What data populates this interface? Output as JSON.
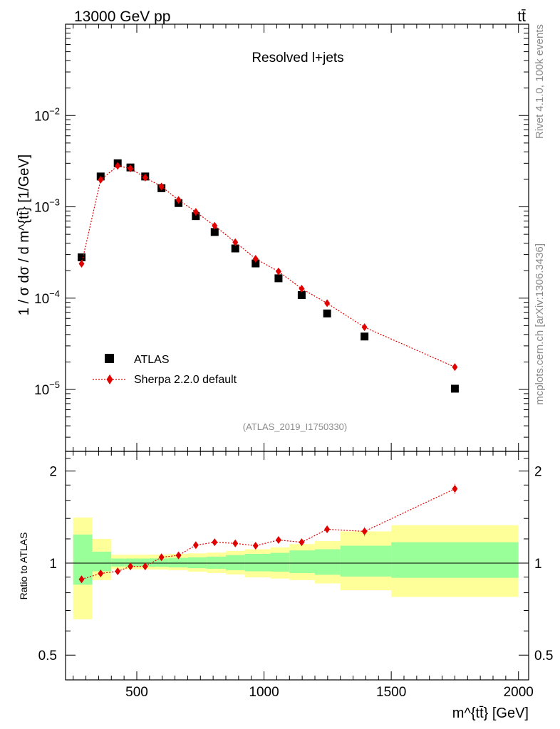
{
  "header": {
    "left_label": "13000 GeV pp",
    "right_label": "tt̄"
  },
  "side_labels": {
    "rivet": "Rivet 4.1.0,  100k events",
    "mcplots": "mcplots.cern.ch [arXiv:1306.3436]"
  },
  "chart_data": [
    {
      "type": "scatter",
      "title": "Resolved l+jets",
      "watermark": "(ATLAS_2019_I1750330)",
      "ylabel": "1 / σ dσ / d m^{tt̄} [1/GeV]",
      "yscale": "log",
      "xlim": [
        220,
        2040
      ],
      "ylim": [
        2.1e-06,
        0.1
      ],
      "y_ticks": [
        {
          "value": 1e-05,
          "base": "10",
          "exp": "−5"
        },
        {
          "value": 0.0001,
          "base": "10",
          "exp": "−4"
        },
        {
          "value": 0.001,
          "base": "10",
          "exp": "−3"
        },
        {
          "value": 0.01,
          "base": "10",
          "exp": "−2"
        }
      ],
      "legend": {
        "position": "bottom-left",
        "entries": [
          "ATLAS",
          "Sherpa 2.2.0 default"
        ]
      },
      "bins": [
        [
          250,
          325
        ],
        [
          325,
          400
        ],
        [
          400,
          450
        ],
        [
          450,
          500
        ],
        [
          500,
          550
        ],
        [
          550,
          625
        ],
        [
          625,
          700
        ],
        [
          700,
          775
        ],
        [
          775,
          850
        ],
        [
          850,
          925
        ],
        [
          925,
          1025
        ],
        [
          1025,
          1100
        ],
        [
          1100,
          1200
        ],
        [
          1200,
          1300
        ],
        [
          1300,
          1500
        ],
        [
          1500,
          2000
        ]
      ],
      "series": [
        {
          "name": "ATLAS",
          "marker": "square",
          "color": "#000000",
          "x": [
            283,
            358,
            425,
            475,
            533,
            597,
            664,
            732,
            806,
            887,
            967,
            1057,
            1148,
            1248,
            1395,
            1750
          ],
          "y": [
            0.00028,
            0.00215,
            0.003,
            0.0027,
            0.00215,
            0.0016,
            0.0011,
            0.00079,
            0.00053,
            0.00035,
            0.00024,
            0.000165,
            0.000108,
            6.8e-05,
            3.8e-05,
            1.02e-05
          ]
        },
        {
          "name": "Sherpa 2.2.0 default",
          "marker": "diamond",
          "color": "#e00000",
          "line": "dotted",
          "x": [
            283,
            358,
            425,
            475,
            533,
            597,
            664,
            732,
            806,
            887,
            967,
            1057,
            1148,
            1248,
            1395,
            1750
          ],
          "y": [
            0.000238,
            0.00198,
            0.00281,
            0.00263,
            0.00209,
            0.00167,
            0.00119,
            0.00088,
            0.00062,
            0.00041,
            0.00027,
            0.000196,
            0.000127,
            8.8e-05,
            4.8e-05,
            1.76e-05
          ]
        }
      ]
    },
    {
      "type": "scatter",
      "ylabel": "Ratio to ATLAS",
      "xlabel": "m^{tt̄} [GeV]",
      "xlim": [
        220,
        2040
      ],
      "ylim": [
        0.415,
        2.32
      ],
      "yscale": "log",
      "x_ticks": [
        500,
        1000,
        1500,
        2000
      ],
      "y_ticks": [
        {
          "value": 0.5,
          "label": "0.5"
        },
        {
          "value": 1,
          "label": "1"
        },
        {
          "value": 2,
          "label": "2"
        }
      ],
      "reference_line": 1,
      "bins": [
        [
          250,
          325
        ],
        [
          325,
          400
        ],
        [
          400,
          450
        ],
        [
          450,
          500
        ],
        [
          500,
          550
        ],
        [
          550,
          625
        ],
        [
          625,
          700
        ],
        [
          700,
          775
        ],
        [
          775,
          850
        ],
        [
          850,
          925
        ],
        [
          925,
          1025
        ],
        [
          1025,
          1100
        ],
        [
          1100,
          1200
        ],
        [
          1200,
          1300
        ],
        [
          1300,
          1500
        ],
        [
          1500,
          2000
        ]
      ],
      "band_total": {
        "name": "total uncertainty",
        "color": "#ffff99",
        "lo": [
          0.655,
          0.88,
          0.955,
          0.955,
          0.955,
          0.953,
          0.948,
          0.938,
          0.928,
          0.918,
          0.898,
          0.89,
          0.88,
          0.858,
          0.815,
          0.775
        ],
        "hi": [
          1.41,
          1.2,
          1.065,
          1.065,
          1.065,
          1.066,
          1.072,
          1.076,
          1.082,
          1.096,
          1.11,
          1.126,
          1.154,
          1.18,
          1.27,
          1.33
        ]
      },
      "band_stat": {
        "name": "statistical uncertainty",
        "color": "#99ff99",
        "lo": [
          0.85,
          0.94,
          0.975,
          0.975,
          0.975,
          0.972,
          0.968,
          0.962,
          0.958,
          0.948,
          0.94,
          0.938,
          0.928,
          0.916,
          0.904,
          0.895
        ],
        "hi": [
          1.24,
          1.09,
          1.035,
          1.035,
          1.035,
          1.036,
          1.04,
          1.045,
          1.05,
          1.062,
          1.072,
          1.08,
          1.1,
          1.11,
          1.14,
          1.17
        ]
      },
      "series": [
        {
          "name": "Sherpa 2.2.0 default",
          "marker": "diamond",
          "color": "#e00000",
          "line": "dotted",
          "x": [
            283,
            358,
            425,
            475,
            533,
            597,
            664,
            732,
            806,
            887,
            967,
            1057,
            1148,
            1248,
            1395,
            1750
          ],
          "y": [
            0.885,
            0.925,
            0.94,
            0.975,
            0.975,
            1.045,
            1.06,
            1.145,
            1.17,
            1.16,
            1.14,
            1.19,
            1.17,
            1.29,
            1.27,
            1.75
          ],
          "err": [
            0.02,
            0.02,
            0.01,
            0.01,
            0.01,
            0.01,
            0.012,
            0.014,
            0.016,
            0.02,
            0.02,
            0.028,
            0.032,
            0.04,
            0.045,
            0.065
          ]
        }
      ]
    }
  ]
}
